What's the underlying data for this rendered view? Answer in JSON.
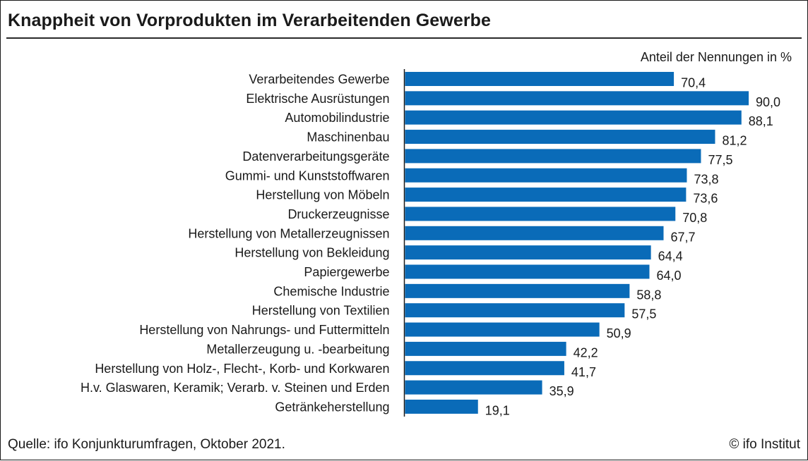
{
  "header": {
    "title": "Knappheit von Vorprodukten im Verarbeitenden Gewerbe",
    "unit_label": "Anteil der Nennungen in %"
  },
  "footer": {
    "source": "Quelle: ifo Konjunkturumfragen, Oktober 2021.",
    "credit": "© ifo Institut"
  },
  "colors": {
    "bar": "#0a6bb8",
    "axis": "#1a1a1a",
    "text": "#1a1a1a"
  },
  "chart_data": {
    "type": "bar",
    "orientation": "horizontal",
    "title": "Knappheit von Vorprodukten im Verarbeitenden Gewerbe",
    "xlabel": "Anteil der Nennungen in %",
    "ylabel": "",
    "xlim": [
      0,
      100
    ],
    "grid": false,
    "legend": "none",
    "categories": [
      "Verarbeitendes Gewerbe",
      "Elektrische Ausrüstungen",
      "Automobilindustrie",
      "Maschinenbau",
      "Datenverarbeitungsgeräte",
      "Gummi- und Kunststoffwaren",
      "Herstellung von Möbeln",
      "Druckerzeugnisse",
      "Herstellung von Metallerzeugnissen",
      "Herstellung von Bekleidung",
      "Papiergewerbe",
      "Chemische Industrie",
      "Herstellung von Textilien",
      "Herstellung von Nahrungs- und Futtermitteln",
      "Metallerzeugung u. -bearbeitung",
      "Herstellung von Holz-, Flecht-, Korb- und Korkwaren",
      "H.v. Glaswaren, Keramik; Verarb. v. Steinen und Erden",
      "Getränkeherstellung"
    ],
    "values": [
      70.4,
      90.0,
      88.1,
      81.2,
      77.5,
      73.8,
      73.6,
      70.8,
      67.7,
      64.4,
      64.0,
      58.8,
      57.5,
      50.9,
      42.2,
      41.7,
      35.9,
      19.1
    ],
    "value_labels": [
      "70,4",
      "90,0",
      "88,1",
      "81,2",
      "77,5",
      "73,8",
      "73,6",
      "70,8",
      "67,7",
      "64,4",
      "64,0",
      "58,8",
      "57,5",
      "50,9",
      "42,2",
      "41,7",
      "35,9",
      "19,1"
    ]
  }
}
